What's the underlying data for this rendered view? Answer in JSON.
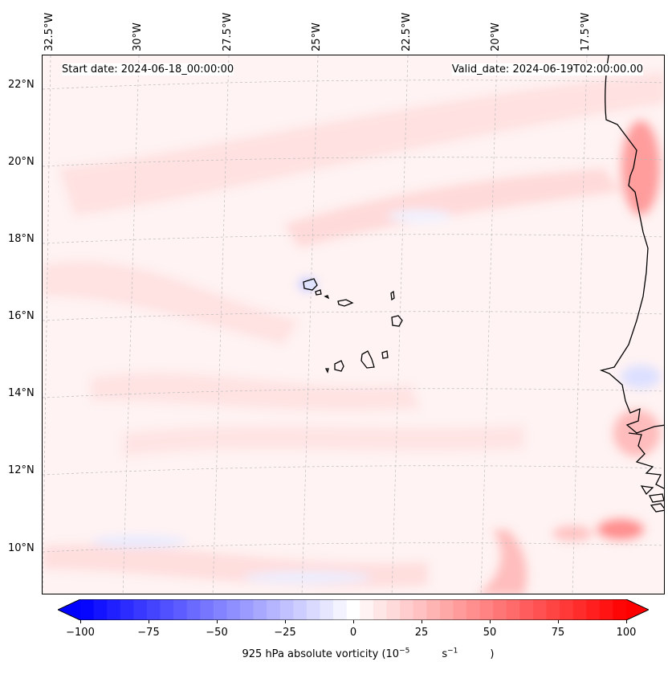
{
  "map": {
    "start_date": "Start date: 2024-06-18_00:00:00",
    "valid_date": "Valid_date: 2024-06-19T02:00:00.00",
    "lon_labels": [
      "32.5°W",
      "30°W",
      "27.5°W",
      "25°W",
      "22.5°W",
      "20°W",
      "17.5°W"
    ],
    "lat_labels": [
      "22°N",
      "20°N",
      "18°N",
      "16°N",
      "14°N",
      "12°N",
      "10°N"
    ]
  },
  "colorbar": {
    "ticks": [
      "−100",
      "−75",
      "−50",
      "−25",
      "0",
      "25",
      "50",
      "75",
      "100"
    ],
    "label_prefix": "925 hPa absolute vorticity (10",
    "label_exp1": "−5",
    "label_mid": "s",
    "label_exp2": "−1",
    "label_suffix": ")",
    "min": -100,
    "max": 100,
    "colors": {
      "low": "#0000ff",
      "mid": "#ffffff",
      "high": "#ff0000"
    }
  }
}
